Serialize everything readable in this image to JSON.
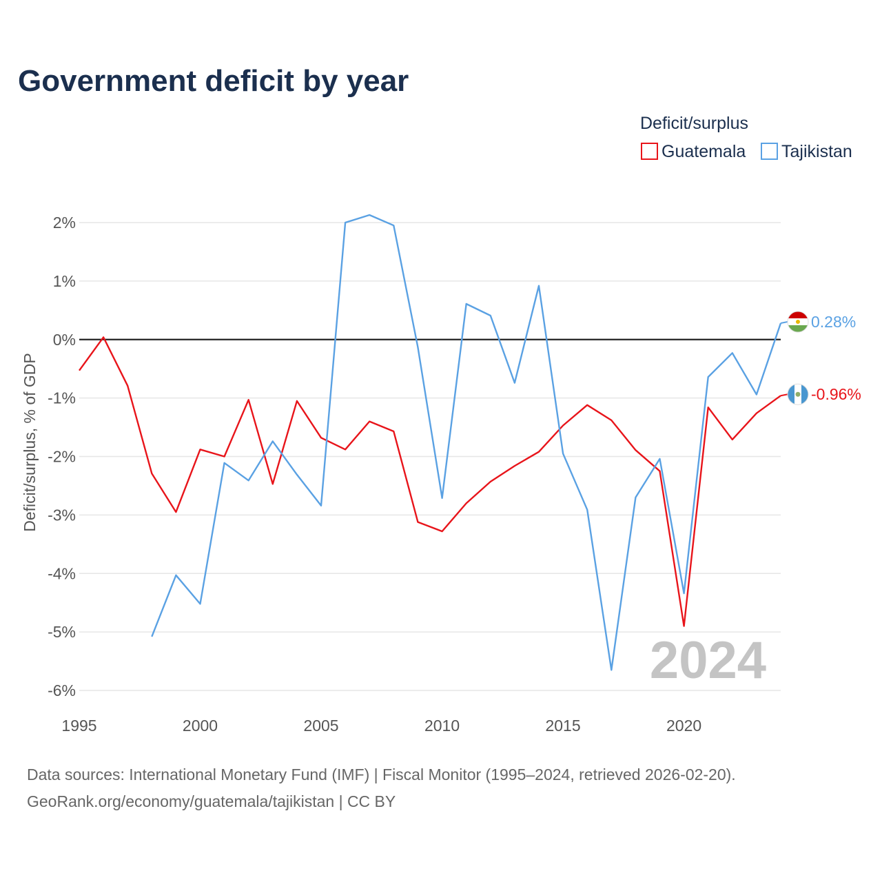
{
  "title": "Government deficit by year",
  "legend": {
    "title": "Deficit/surplus",
    "items": [
      {
        "label": "Guatemala",
        "color": "#e8141a"
      },
      {
        "label": "Tajikistan",
        "color": "#5aa1e3"
      }
    ]
  },
  "watermark": "2024",
  "source_line1": "Data sources: International Monetary Fund (IMF) | Fiscal Monitor (1995–2024, retrieved 2026-02-20).",
  "source_line2": "GeoRank.org/economy/guatemala/tajikistan | CC BY",
  "chart_data": {
    "type": "line",
    "title": "Government deficit by year",
    "xlabel": "",
    "ylabel": "Deficit/surplus, % of GDP",
    "xlim": [
      1995,
      2024
    ],
    "ylim": [
      -6,
      2
    ],
    "yticks": [
      2,
      1,
      0,
      -1,
      -2,
      -3,
      -4,
      -5,
      -6
    ],
    "ytick_labels": [
      "2%",
      "1%",
      "0%",
      "-1%",
      "-2%",
      "-3%",
      "-4%",
      "-5%",
      "-6%"
    ],
    "xticks": [
      1995,
      2000,
      2005,
      2010,
      2015,
      2020
    ],
    "xtick_labels": [
      "1995",
      "2000",
      "2005",
      "2010",
      "2015",
      "2020"
    ],
    "series": [
      {
        "name": "Guatemala",
        "color": "#e8141a",
        "end_label": "-0.96%",
        "flag": "guatemala-flag",
        "x": [
          1995,
          1996,
          1997,
          1998,
          1999,
          2000,
          2001,
          2002,
          2003,
          2004,
          2005,
          2006,
          2007,
          2008,
          2009,
          2010,
          2011,
          2012,
          2013,
          2014,
          2015,
          2016,
          2017,
          2018,
          2019,
          2020,
          2021,
          2022,
          2023,
          2024
        ],
        "y": [
          -0.53,
          0.04,
          -0.79,
          -2.29,
          -2.95,
          -1.88,
          -2.0,
          -1.03,
          -2.47,
          -1.05,
          -1.68,
          -1.88,
          -1.4,
          -1.57,
          -3.12,
          -3.28,
          -2.8,
          -2.43,
          -2.16,
          -1.92,
          -1.47,
          -1.12,
          -1.38,
          -1.89,
          -2.25,
          -4.9,
          -1.16,
          -1.71,
          -1.26,
          -0.96
        ]
      },
      {
        "name": "Tajikistan",
        "color": "#5aa1e3",
        "end_label": "0.28%",
        "flag": "tajikistan-flag",
        "x": [
          1998,
          1999,
          2000,
          2001,
          2002,
          2003,
          2004,
          2005,
          2006,
          2007,
          2008,
          2009,
          2010,
          2011,
          2012,
          2013,
          2014,
          2015,
          2016,
          2017,
          2018,
          2019,
          2020,
          2021,
          2022,
          2023,
          2024
        ],
        "y": [
          -5.08,
          -4.03,
          -4.52,
          -2.11,
          -2.41,
          -1.74,
          -2.31,
          -2.84,
          2.0,
          2.13,
          1.95,
          -0.13,
          -2.71,
          0.61,
          0.41,
          -0.74,
          0.92,
          -1.95,
          -2.91,
          -5.65,
          -2.7,
          -2.04,
          -4.34,
          -0.64,
          -0.23,
          -0.94,
          0.28
        ]
      }
    ]
  }
}
